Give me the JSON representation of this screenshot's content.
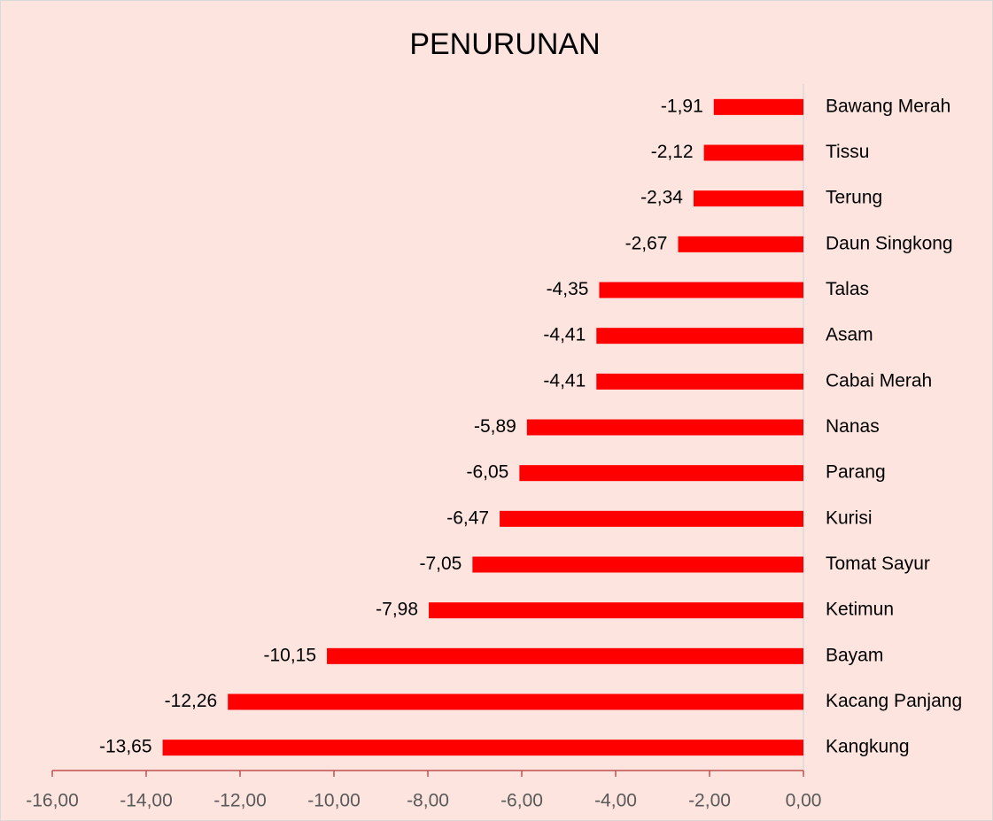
{
  "chart_data": {
    "type": "bar",
    "title": "PENURUNAN",
    "categories": [
      "Bawang Merah",
      "Tissu",
      "Terung",
      "Daun Singkong",
      "Talas",
      "Asam",
      "Cabai Merah",
      "Nanas",
      "Parang",
      "Kurisi",
      "Tomat Sayur",
      "Ketimun",
      "Bayam",
      "Kacang Panjang",
      "Kangkung"
    ],
    "values": [
      -1.91,
      -2.12,
      -2.34,
      -2.67,
      -4.35,
      -4.41,
      -4.41,
      -5.89,
      -6.05,
      -6.47,
      -7.05,
      -7.98,
      -10.15,
      -12.26,
      -13.65
    ],
    "value_labels": [
      "-1,91",
      "-2,12",
      "-2,34",
      "-2,67",
      "-4,35",
      "-4,41",
      "-4,41",
      "-5,89",
      "-6,05",
      "-6,47",
      "-7,05",
      "-7,98",
      "-10,15",
      "-12,26",
      "-13,65"
    ],
    "color": "#ff0000",
    "xlim": [
      -16,
      0
    ],
    "xticks": [
      {
        "value": -16,
        "label": "-16,00"
      },
      {
        "value": -14,
        "label": "-14,00"
      },
      {
        "value": -12,
        "label": "-12,00"
      },
      {
        "value": -10,
        "label": "-10,00"
      },
      {
        "value": -8,
        "label": "-8,00"
      },
      {
        "value": -6,
        "label": "-6,00"
      },
      {
        "value": -4,
        "label": "-4,00"
      },
      {
        "value": -2,
        "label": "-2,00"
      },
      {
        "value": 0,
        "label": "0,00"
      }
    ]
  }
}
